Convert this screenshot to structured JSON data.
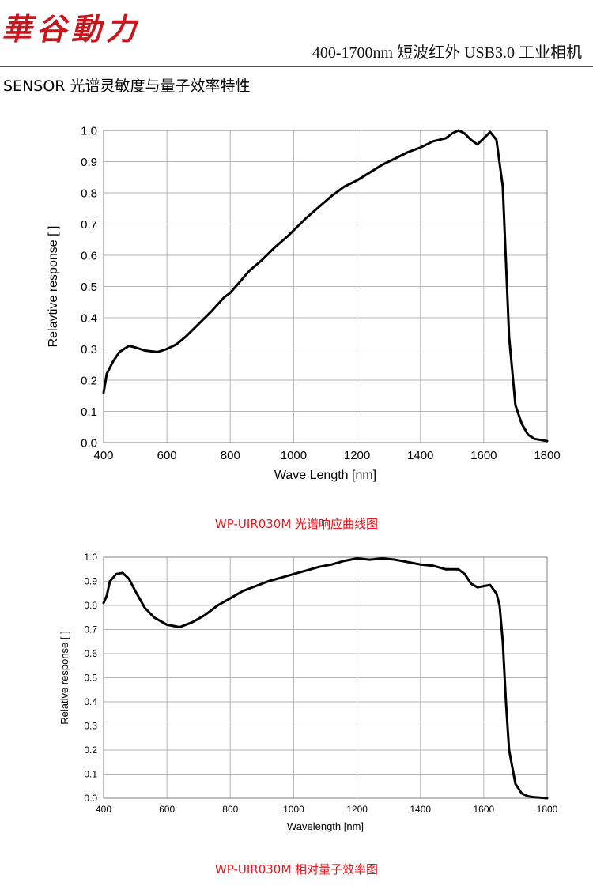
{
  "header": {
    "logo_text": "華谷動力",
    "product_line": "400-1700nm 短波红外 USB3.0 工业相机"
  },
  "section_title": "SENSOR 光谱灵敏度与量子效率特性",
  "captions": {
    "chart1": "WP-UIR030M 光谱响应曲线图",
    "chart2": "WP-UIR030M 相对量子效率图"
  },
  "chart_data": [
    {
      "type": "line",
      "title": "",
      "xlabel": "Wave Length [nm]",
      "ylabel": "Relavtive response [ ]",
      "xlim": [
        400,
        1800
      ],
      "ylim": [
        0,
        1
      ],
      "xticks": [
        400,
        600,
        800,
        1000,
        1200,
        1400,
        1600,
        1800
      ],
      "yticks": [
        0.0,
        0.1,
        0.2,
        0.3,
        0.4,
        0.5,
        0.6,
        0.7,
        0.8,
        0.9,
        1.0
      ],
      "tick_labels_x": [
        "400",
        "600",
        "800",
        "1000",
        "1200",
        "1400",
        "1600",
        "1800"
      ],
      "tick_labels_y": [
        "0.0",
        "0.1",
        "0.2",
        "0.3",
        "0.4",
        "0.5",
        "0.6",
        "0.7",
        "0.8",
        "0.9",
        "1.0"
      ],
      "grid": true,
      "series": [
        {
          "x": [
            400,
            410,
            430,
            450,
            480,
            500,
            530,
            570,
            600,
            630,
            660,
            700,
            740,
            780,
            800,
            830,
            860,
            900,
            940,
            980,
            1000,
            1040,
            1080,
            1120,
            1160,
            1200,
            1240,
            1280,
            1320,
            1360,
            1400,
            1440,
            1480,
            1500,
            1520,
            1540,
            1560,
            1580,
            1600,
            1620,
            1640,
            1660,
            1680,
            1700,
            1720,
            1740,
            1760,
            1800
          ],
          "y": [
            0.16,
            0.22,
            0.26,
            0.29,
            0.31,
            0.305,
            0.295,
            0.29,
            0.3,
            0.315,
            0.34,
            0.38,
            0.42,
            0.465,
            0.48,
            0.515,
            0.55,
            0.585,
            0.625,
            0.66,
            0.68,
            0.72,
            0.755,
            0.79,
            0.82,
            0.84,
            0.865,
            0.89,
            0.91,
            0.93,
            0.945,
            0.965,
            0.975,
            0.99,
            1.0,
            0.99,
            0.97,
            0.955,
            0.975,
            0.995,
            0.97,
            0.82,
            0.34,
            0.12,
            0.06,
            0.025,
            0.012,
            0.005
          ],
          "color": "#000000"
        }
      ]
    },
    {
      "type": "line",
      "title": "",
      "xlabel": "Wavelength [nm]",
      "ylabel": "Relative response [ ]",
      "xlim": [
        400,
        1800
      ],
      "ylim": [
        0,
        1
      ],
      "xticks": [
        400,
        600,
        800,
        1000,
        1200,
        1400,
        1600,
        1800
      ],
      "yticks": [
        0.0,
        0.1,
        0.2,
        0.3,
        0.4,
        0.5,
        0.6,
        0.7,
        0.8,
        0.9,
        1.0
      ],
      "tick_labels_x": [
        "400",
        "600",
        "800",
        "1000",
        "1200",
        "1400",
        "1600",
        "1800"
      ],
      "tick_labels_y": [
        "0.0",
        "0.1",
        "0.2",
        "0.3",
        "0.4",
        "0.5",
        "0.6",
        "0.7",
        "0.8",
        "0.9",
        "1.0"
      ],
      "grid": true,
      "series": [
        {
          "x": [
            400,
            410,
            420,
            440,
            460,
            480,
            500,
            530,
            560,
            600,
            640,
            680,
            720,
            760,
            800,
            840,
            880,
            920,
            960,
            1000,
            1040,
            1080,
            1120,
            1160,
            1200,
            1240,
            1280,
            1320,
            1360,
            1400,
            1440,
            1480,
            1520,
            1540,
            1560,
            1580,
            1600,
            1620,
            1640,
            1650,
            1660,
            1670,
            1680,
            1700,
            1720,
            1740,
            1760,
            1780,
            1800
          ],
          "y": [
            0.81,
            0.84,
            0.9,
            0.93,
            0.935,
            0.91,
            0.86,
            0.79,
            0.75,
            0.72,
            0.71,
            0.73,
            0.76,
            0.8,
            0.83,
            0.86,
            0.88,
            0.9,
            0.915,
            0.93,
            0.945,
            0.96,
            0.97,
            0.985,
            0.995,
            0.99,
            0.995,
            0.99,
            0.98,
            0.97,
            0.965,
            0.95,
            0.95,
            0.93,
            0.89,
            0.875,
            0.88,
            0.885,
            0.85,
            0.8,
            0.65,
            0.4,
            0.2,
            0.06,
            0.02,
            0.008,
            0.004,
            0.002,
            0.0
          ],
          "color": "#000000"
        }
      ]
    }
  ]
}
